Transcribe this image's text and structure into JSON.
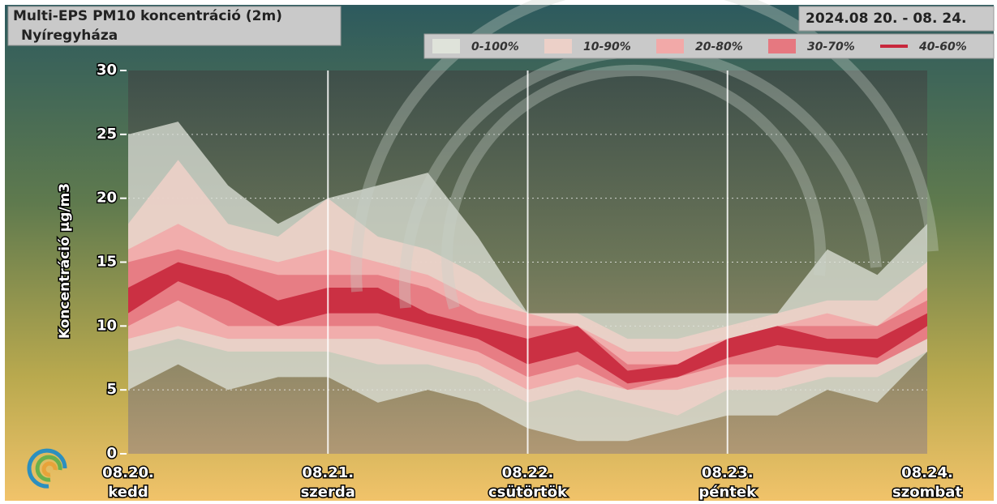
{
  "chart_data": {
    "type": "fan",
    "title": "Multi-EPS PM10 koncentráció (2m)",
    "subtitle": "Nyíregyháza",
    "date_range": "2024.08 20. - 08. 24.",
    "ylabel": "Koncentráció µg/m3",
    "x": [
      0,
      0.25,
      0.5,
      0.75,
      1,
      1.25,
      1.5,
      1.75,
      2,
      2.25,
      2.5,
      2.75,
      3,
      3.25,
      3.5,
      3.75,
      4
    ],
    "xlim": [
      0,
      4
    ],
    "xticks": [
      {
        "value": 0,
        "label": "08.20."
      },
      {
        "value": 1,
        "label": "08.21."
      },
      {
        "value": 2,
        "label": "08.22."
      },
      {
        "value": 3,
        "label": "08.23."
      },
      {
        "value": 4,
        "label": "08.24."
      }
    ],
    "xtick_days": [
      "kedd",
      "szerda",
      "csütörtök",
      "péntek",
      "szombat"
    ],
    "ylim": [
      0,
      30
    ],
    "yticks": [
      0,
      5,
      10,
      15,
      20,
      25,
      30
    ],
    "grid": true,
    "series": [
      {
        "name": "0-100%",
        "color": "#dfe3da",
        "low": [
          5,
          7,
          5,
          6,
          6,
          4,
          5,
          4,
          2,
          1,
          1,
          2,
          3,
          3,
          5,
          4,
          8
        ],
        "high": [
          25,
          26,
          21,
          18,
          20,
          21,
          22,
          17,
          11,
          11,
          11,
          11,
          11,
          11,
          16,
          14,
          18
        ]
      },
      {
        "name": "10-90%",
        "color": "#ecd0c8",
        "low": [
          8,
          9,
          8,
          8,
          8,
          7,
          7,
          6,
          4,
          5,
          4,
          3,
          5,
          5,
          6,
          6,
          8
        ],
        "high": [
          18,
          23,
          18,
          17,
          20,
          17,
          16,
          14,
          11,
          11,
          9,
          9,
          10,
          11,
          12,
          12,
          15
        ]
      },
      {
        "name": "20-80%",
        "color": "#f2a9a8",
        "low": [
          9,
          10,
          9,
          9,
          9,
          9,
          8,
          7,
          5,
          6,
          5,
          5,
          6,
          6,
          7,
          7,
          9
        ],
        "high": [
          16,
          18,
          16,
          15,
          16,
          15,
          14,
          12,
          11,
          10,
          8,
          8,
          9,
          10,
          11,
          10,
          13
        ]
      },
      {
        "name": "30-70%",
        "color": "#e67880",
        "low": [
          10,
          12,
          10,
          10,
          10,
          10,
          9,
          8,
          6,
          7,
          5,
          6,
          7,
          7,
          7,
          7,
          9
        ],
        "high": [
          15,
          16,
          15,
          14,
          14,
          14,
          13,
          11,
          10,
          10,
          7,
          7,
          9,
          10,
          10,
          10,
          12
        ]
      },
      {
        "name": "40-60%",
        "color": "#c8283c",
        "low": [
          11,
          13.5,
          12,
          10,
          11,
          11,
          10,
          9,
          7,
          8,
          5.5,
          6,
          7.5,
          8.5,
          8,
          7.5,
          10
        ],
        "high": [
          13,
          15,
          14,
          12,
          13,
          13,
          11,
          10,
          9,
          10,
          6.5,
          7,
          9,
          10,
          9,
          9,
          11
        ]
      }
    ]
  }
}
